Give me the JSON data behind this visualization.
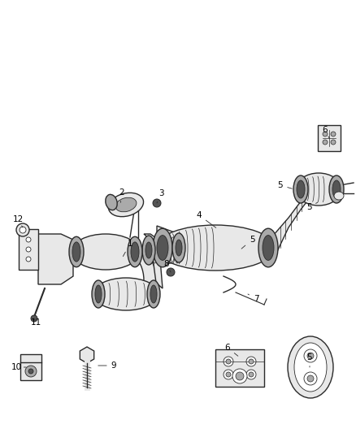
{
  "background_color": "#ffffff",
  "line_color": "#2a2a2a",
  "label_color": "#000000",
  "fig_width": 4.38,
  "fig_height": 5.33,
  "dpi": 100,
  "lw_main": 1.0,
  "lw_thin": 0.6,
  "gray_fill": "#c8c8c8",
  "light_gray": "#e8e8e8",
  "mid_gray": "#aaaaaa",
  "dark_gray": "#555555"
}
